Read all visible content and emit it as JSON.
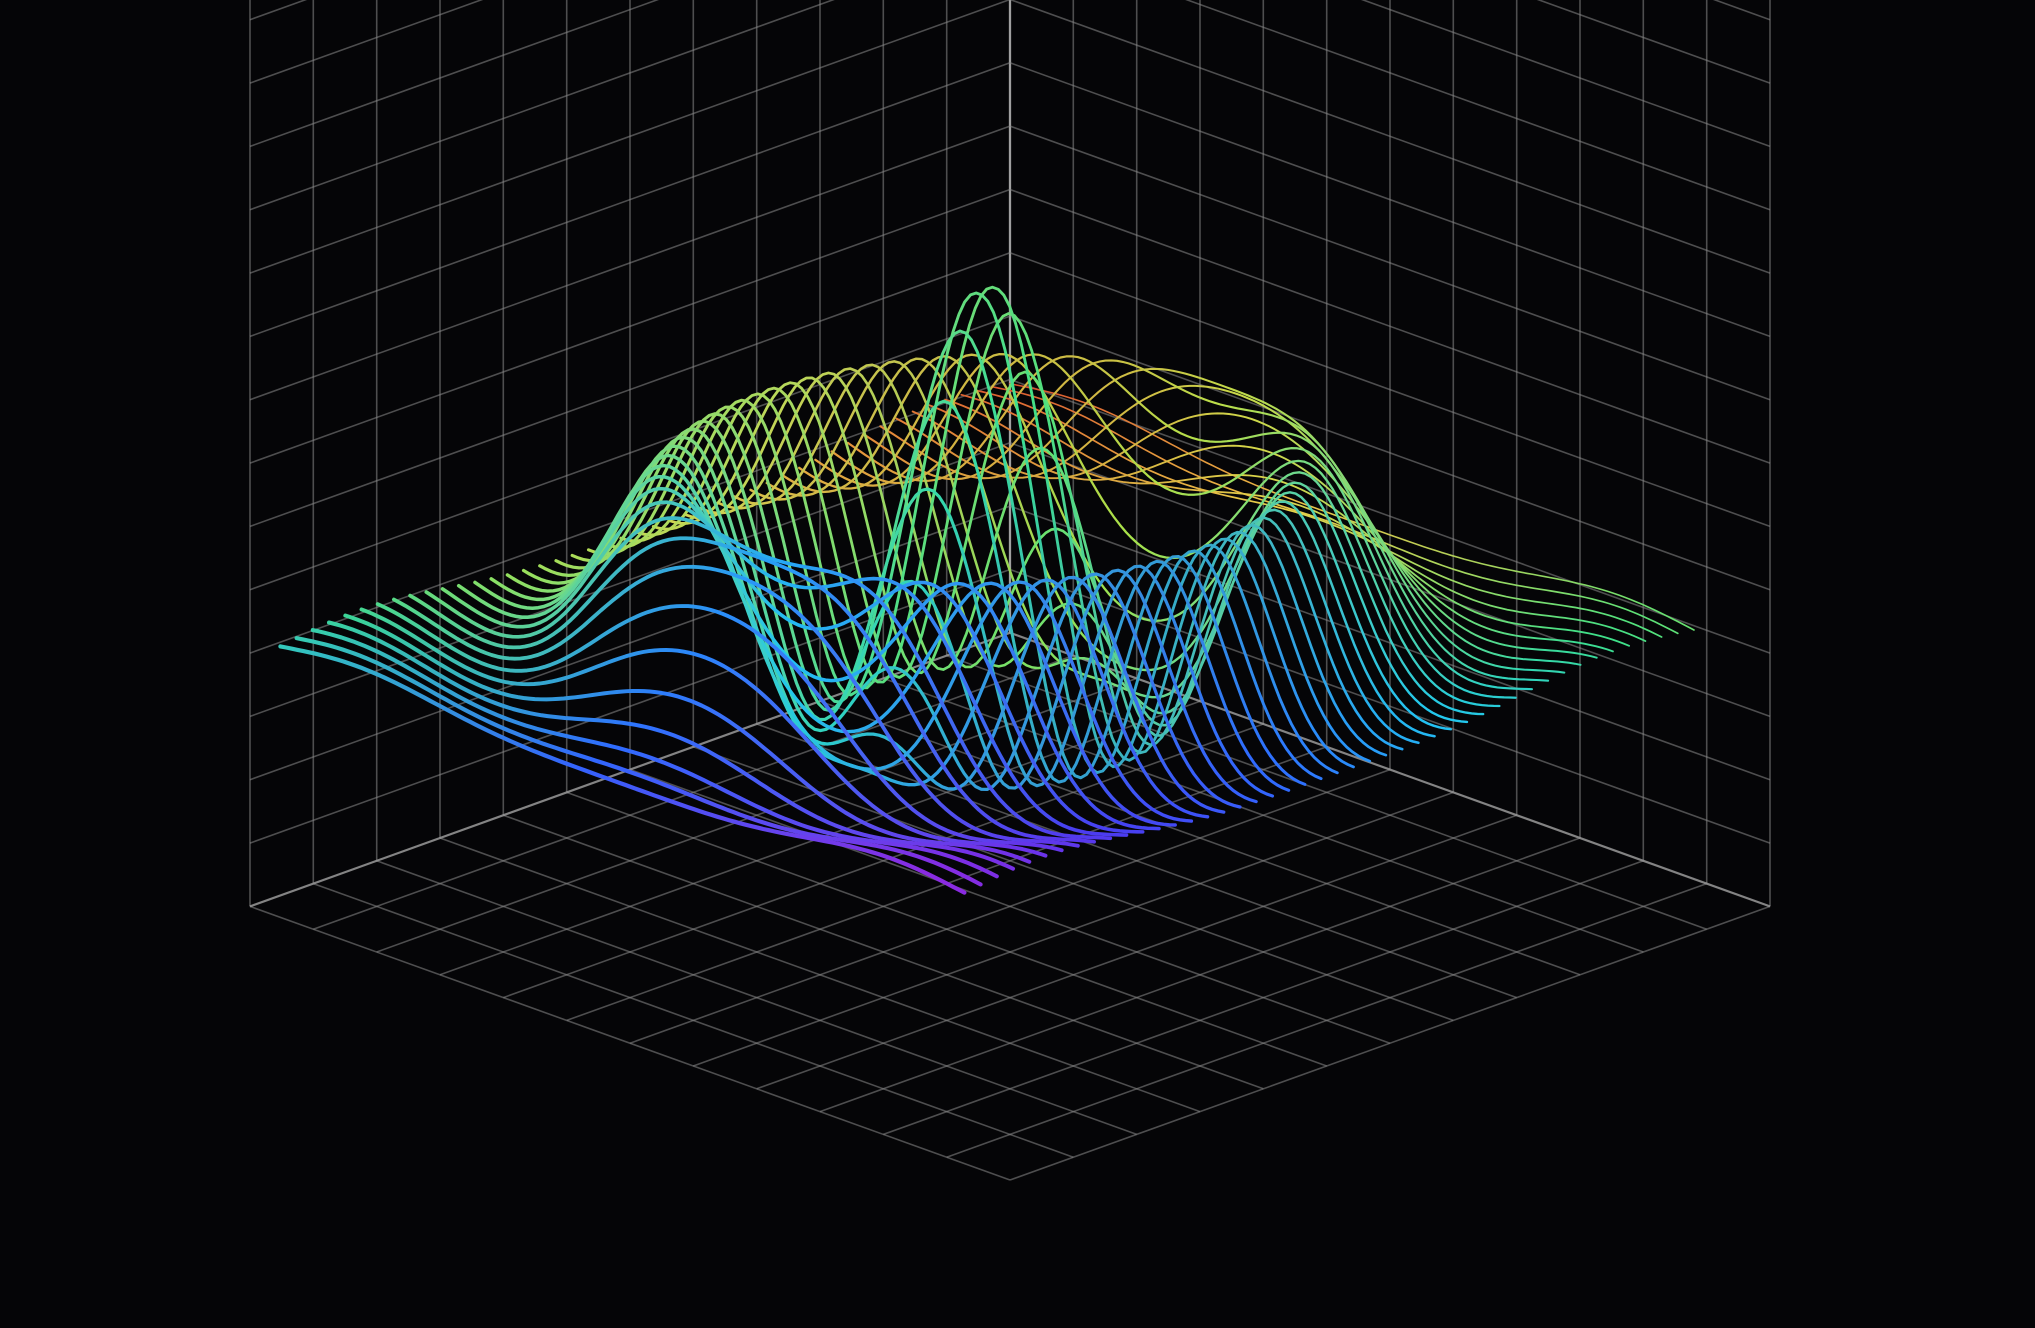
{
  "chart_data": {
    "type": "surface",
    "title": "",
    "xlabel": "",
    "ylabel": "",
    "zlabel": "",
    "grid": true,
    "background": "#050507",
    "gridline_color": "#8a8a8a",
    "colormap": [
      "#8a2be2",
      "#4a3cf0",
      "#2f6cff",
      "#22c6f0",
      "#3ee08a",
      "#a6e34a",
      "#e8d34a",
      "#f08a3a",
      "#d8402a"
    ],
    "surface": {
      "function": "ripple",
      "description_of_shape": "central peak surrounded by a ring-shaped ridge (radial damped wave)",
      "x_range": [
        -10,
        10
      ],
      "y_range": [
        -10,
        10
      ],
      "z_range": [
        -0.35,
        1.0
      ],
      "rows": 46,
      "samples_per_row": 120,
      "peak_height": 1.0,
      "ring_radius": 6.2,
      "ring_height": 0.45,
      "decay": 0.18
    },
    "grid_box": {
      "cells_per_axis": 12
    }
  }
}
